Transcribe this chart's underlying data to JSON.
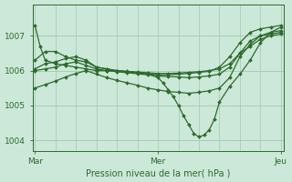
{
  "background_color": "#cce8d8",
  "grid_color": "#a0c8b0",
  "line_color": "#2d6a2d",
  "xlabel": "Pression niveau de la mer( hPa )",
  "xtick_labels": [
    "Mar",
    "Mer",
    "Jeu"
  ],
  "xtick_positions": [
    0,
    48,
    96
  ],
  "ytick_positions": [
    1004,
    1005,
    1006,
    1007
  ],
  "ylim": [
    1003.7,
    1007.9
  ],
  "xlim": [
    -1,
    97
  ],
  "lines": [
    {
      "x": [
        0,
        2,
        4,
        8,
        12,
        16,
        20,
        24,
        28,
        32,
        36,
        40,
        44,
        48,
        52,
        56,
        60,
        64,
        68,
        72,
        76,
        80,
        84,
        88,
        92,
        96
      ],
      "y": [
        1007.3,
        1006.7,
        1006.3,
        1006.2,
        1006.15,
        1006.1,
        1006.05,
        1006.0,
        1006.0,
        1006.0,
        1005.98,
        1005.96,
        1005.94,
        1005.92,
        1005.92,
        1005.93,
        1005.95,
        1005.97,
        1006.0,
        1006.05,
        1006.2,
        1006.5,
        1006.7,
        1006.9,
        1007.0,
        1007.05
      ]
    },
    {
      "x": [
        0,
        4,
        8,
        12,
        16,
        20,
        24,
        28,
        32,
        36,
        40,
        44,
        48,
        52,
        56,
        60,
        64,
        68,
        72,
        76,
        80,
        84,
        88,
        92,
        96
      ],
      "y": [
        1006.3,
        1006.55,
        1006.55,
        1006.4,
        1006.3,
        1006.25,
        1006.1,
        1006.05,
        1006.0,
        1005.97,
        1005.94,
        1005.91,
        1005.88,
        1005.88,
        1005.9,
        1005.92,
        1005.95,
        1005.98,
        1006.1,
        1006.4,
        1006.8,
        1007.1,
        1007.2,
        1007.25,
        1007.3
      ]
    },
    {
      "x": [
        0,
        4,
        8,
        12,
        16,
        20,
        24,
        28,
        32,
        36,
        40,
        44,
        48,
        50,
        52,
        54,
        56,
        58,
        60,
        62,
        64,
        66,
        68,
        70,
        72,
        76,
        80,
        84,
        88,
        92,
        96
      ],
      "y": [
        1006.05,
        1006.2,
        1006.25,
        1006.35,
        1006.4,
        1006.3,
        1006.1,
        1006.05,
        1006.0,
        1005.97,
        1005.94,
        1005.91,
        1005.8,
        1005.65,
        1005.45,
        1005.25,
        1005.0,
        1004.7,
        1004.45,
        1004.2,
        1004.1,
        1004.15,
        1004.3,
        1004.6,
        1005.1,
        1005.55,
        1005.9,
        1006.3,
        1006.8,
        1007.1,
        1007.25
      ]
    },
    {
      "x": [
        0,
        4,
        8,
        12,
        16,
        20,
        24,
        28,
        32,
        36,
        40,
        44,
        48,
        52,
        56,
        60,
        64,
        68,
        72,
        76,
        80,
        84,
        88,
        92,
        96
      ],
      "y": [
        1006.0,
        1006.05,
        1006.1,
        1006.2,
        1006.25,
        1006.15,
        1006.05,
        1006.0,
        1005.97,
        1005.94,
        1005.91,
        1005.88,
        1005.85,
        1005.83,
        1005.82,
        1005.8,
        1005.82,
        1005.85,
        1005.9,
        1006.1,
        1006.5,
        1006.85,
        1007.0,
        1007.05,
        1007.1
      ]
    },
    {
      "x": [
        0,
        4,
        8,
        12,
        16,
        20,
        24,
        28,
        32,
        36,
        40,
        44,
        48,
        52,
        56,
        60,
        64,
        68,
        72,
        76,
        80,
        84,
        88,
        92,
        96
      ],
      "y": [
        1005.5,
        1005.6,
        1005.7,
        1005.82,
        1005.92,
        1006.0,
        1005.9,
        1005.8,
        1005.72,
        1005.65,
        1005.58,
        1005.5,
        1005.45,
        1005.4,
        1005.38,
        1005.35,
        1005.38,
        1005.42,
        1005.5,
        1005.8,
        1006.4,
        1006.75,
        1007.0,
        1007.1,
        1007.15
      ]
    }
  ]
}
